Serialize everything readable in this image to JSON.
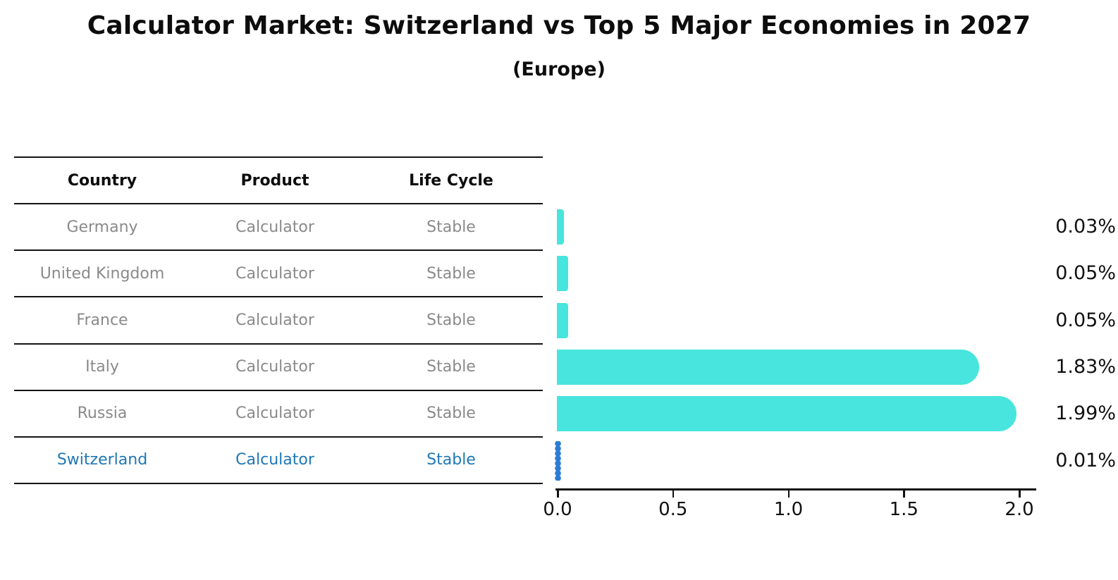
{
  "title": "Calculator Market: Switzerland vs Top 5 Major Economies in 2027",
  "subtitle": "(Europe)",
  "table": {
    "headers": [
      "Country",
      "Product",
      "Life Cycle"
    ],
    "rows": [
      {
        "country": "Germany",
        "product": "Calculator",
        "life_cycle": "Stable",
        "highlight": false
      },
      {
        "country": "United Kingdom",
        "product": "Calculator",
        "life_cycle": "Stable",
        "highlight": false
      },
      {
        "country": "France",
        "product": "Calculator",
        "life_cycle": "Stable",
        "highlight": false
      },
      {
        "country": "Italy",
        "product": "Calculator",
        "life_cycle": "Stable",
        "highlight": false
      },
      {
        "country": "Russia",
        "product": "Calculator",
        "life_cycle": "Stable",
        "highlight": false
      },
      {
        "country": "Switzerland",
        "product": "Calculator",
        "life_cycle": "Stable",
        "highlight": true
      }
    ]
  },
  "chart_data": {
    "type": "bar",
    "orientation": "horizontal",
    "title": "Calculator Market: Switzerland vs Top 5 Major Economies in 2027",
    "subtitle": "(Europe)",
    "categories": [
      "Germany",
      "United Kingdom",
      "France",
      "Italy",
      "Russia",
      "Switzerland"
    ],
    "values": [
      0.03,
      0.05,
      0.05,
      1.83,
      1.99,
      0.01
    ],
    "value_labels": [
      "0.03%",
      "0.05%",
      "0.05%",
      "1.83%",
      "1.99%",
      "0.01%"
    ],
    "x_ticks": [
      "0.0",
      "0.5",
      "1.0",
      "1.5",
      "2.0"
    ],
    "x_tick_values": [
      0.0,
      0.5,
      1.0,
      1.5,
      2.0
    ],
    "xlim": [
      0.0,
      2.05
    ],
    "grid": false,
    "legend": "none",
    "xlabel": "",
    "ylabel": "",
    "highlight_index": 5
  },
  "colors": {
    "bar": "#47E5DD",
    "highlight": "#1f77b4",
    "highlight_dots": "#2b7cd4",
    "text_dark": "#111111",
    "text_muted": "#8a8a8a",
    "axis": "#111111"
  }
}
